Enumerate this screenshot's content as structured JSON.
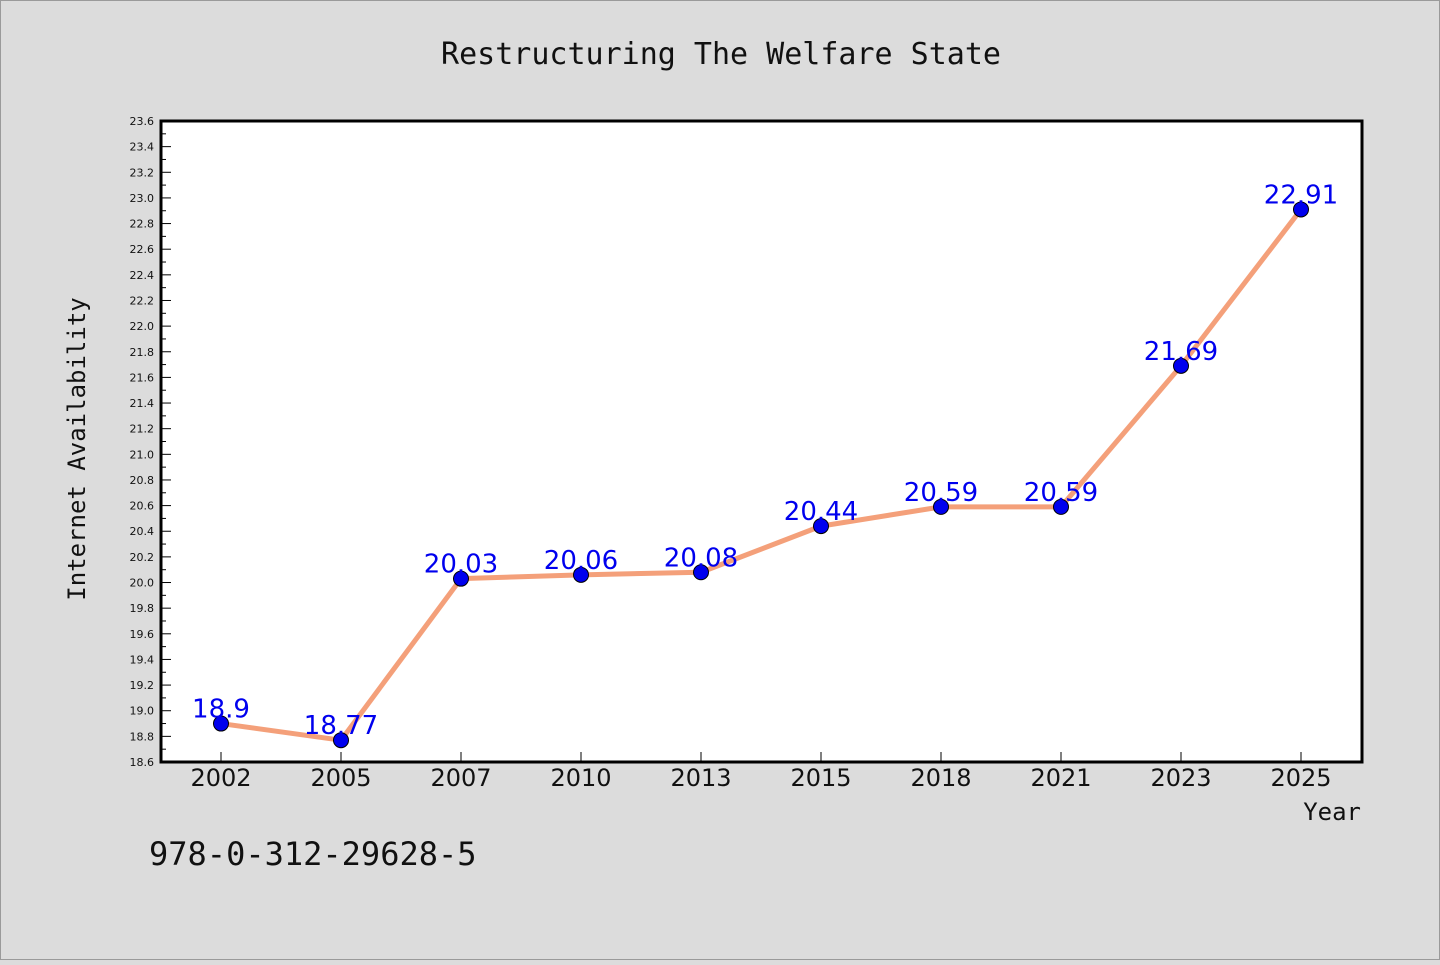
{
  "colors": {
    "background": "#dcdcdc",
    "plot_background": "#ffffff",
    "line": "#f4a07a",
    "marker": "#0000ee",
    "label": "#0000ee"
  },
  "footer_text": "978-0-312-29628-5",
  "chart_data": {
    "type": "line",
    "title": "Restructuring The Welfare State",
    "xlabel": "Year",
    "ylabel": "Internet Availability",
    "categories": [
      "2002",
      "2005",
      "2007",
      "2010",
      "2013",
      "2015",
      "2018",
      "2021",
      "2023",
      "2025"
    ],
    "series": [
      {
        "values": [
          18.9,
          18.77,
          20.03,
          20.06,
          20.08,
          20.44,
          20.59,
          20.59,
          21.69,
          22.91
        ],
        "data_labels": [
          "18.9",
          "18.77",
          "20.03",
          "20.06",
          "20.08",
          "20.44",
          "20.59",
          "20.59",
          "21.69",
          "22.91"
        ]
      }
    ],
    "ylim": [
      18.6,
      23.6
    ],
    "yticks": [
      "18.6",
      "18.8",
      "19.0",
      "19.2",
      "19.4",
      "19.6",
      "19.8",
      "20.0",
      "20.2",
      "20.4",
      "20.6",
      "20.8",
      "21.0",
      "21.2",
      "21.4",
      "21.6",
      "21.8",
      "22.0",
      "22.2",
      "22.4",
      "22.6",
      "22.8",
      "23.0",
      "23.2",
      "23.4",
      "23.6"
    ],
    "grid": false,
    "legend": "none"
  }
}
